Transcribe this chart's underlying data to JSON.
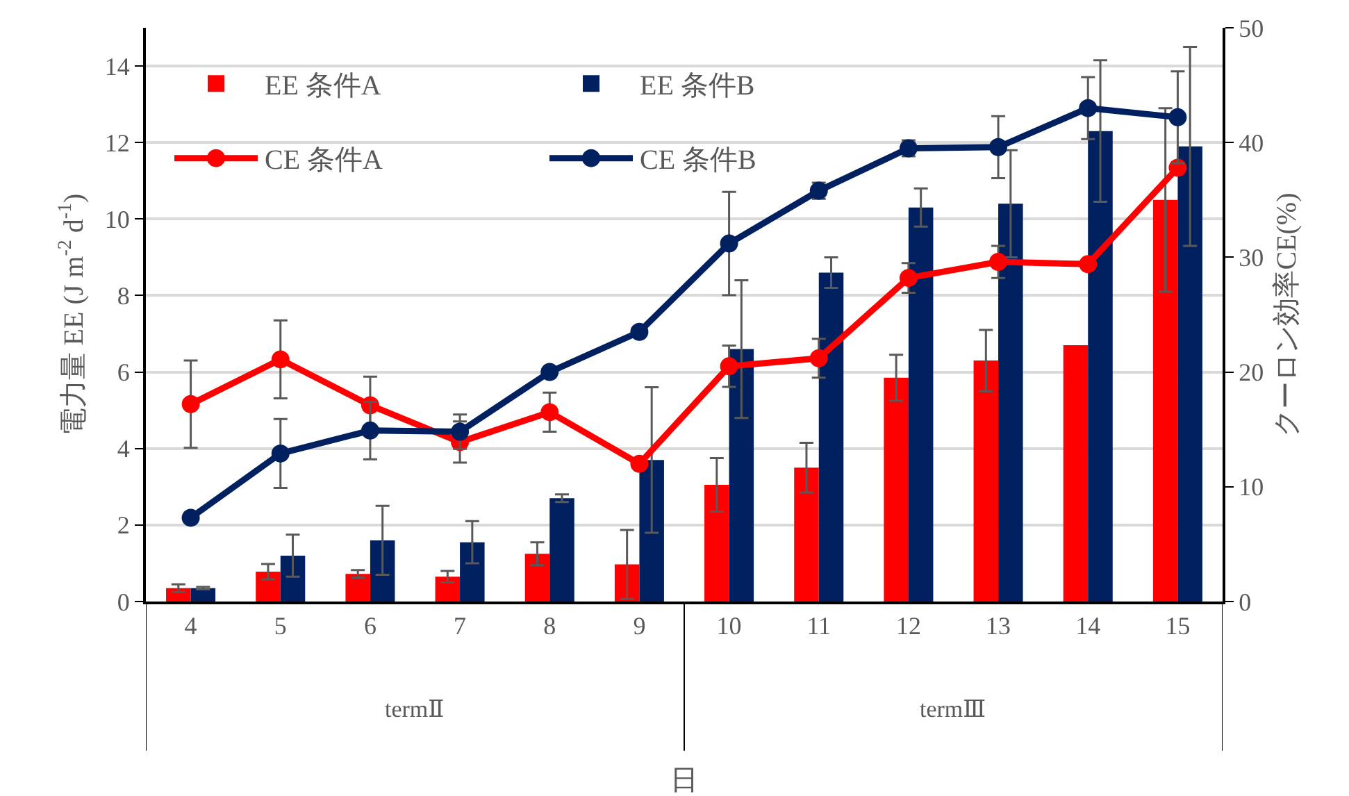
{
  "chart_data": {
    "type": "bar",
    "categories": [
      "4",
      "5",
      "6",
      "7",
      "8",
      "9",
      "10",
      "11",
      "12",
      "13",
      "14",
      "15"
    ],
    "xlabel": "日",
    "ylabel": "電力量 EE (J m$^{-2}$ d$^{-1}$)",
    "y2label": "クーロン効率CE(%)",
    "ylim": [
      0,
      15
    ],
    "yticks": [
      0,
      2,
      4,
      6,
      8,
      10,
      12,
      14
    ],
    "y2lim": [
      0,
      50
    ],
    "y2ticks": [
      0,
      10,
      20,
      30,
      40,
      50
    ],
    "grid": "y",
    "legend": "top left",
    "marker": "circle",
    "annotations": [
      "termⅡ",
      "termⅢ"
    ],
    "series": [
      {
        "name": "EE 条件A",
        "color": "#ff0000",
        "values": [
          0.35,
          0.78,
          0.72,
          0.65,
          1.25,
          0.97,
          3.05,
          3.5,
          5.85,
          6.3,
          6.7,
          10.5
        ],
        "errors": [
          0.1,
          0.2,
          0.1,
          0.15,
          0.3,
          0.9,
          0.7,
          0.65,
          0.6,
          0.8,
          null,
          2.4
        ]
      },
      {
        "name": "EE 条件B",
        "color": "#002060",
        "values": [
          0.35,
          1.2,
          1.6,
          1.55,
          2.7,
          3.7,
          6.6,
          8.6,
          10.3,
          10.4,
          12.3,
          11.9
        ],
        "errors": [
          0.03,
          0.55,
          0.9,
          0.55,
          0.1,
          1.9,
          1.8,
          0.4,
          0.5,
          1.4,
          1.85,
          2.6
        ]
      },
      {
        "name": "CE 条件A",
        "type": "line",
        "axis": "y2",
        "color": "#ff0000",
        "values": [
          17.2,
          21.1,
          17.1,
          13.9,
          16.5,
          12.0,
          20.5,
          21.2,
          28.2,
          29.6,
          29.4,
          37.8
        ],
        "errors": [
          3.8,
          3.4,
          2.5,
          1.8,
          1.7,
          null,
          1.8,
          1.7,
          1.3,
          1.4,
          null,
          null
        ]
      },
      {
        "name": "CE 条件B",
        "type": "line",
        "axis": "y2",
        "color": "#002060",
        "values": [
          7.3,
          12.9,
          14.9,
          14.8,
          20.0,
          23.5,
          31.2,
          35.8,
          39.5,
          39.6,
          43.0,
          42.2
        ],
        "errors": [
          null,
          3.0,
          2.5,
          1.5,
          null,
          null,
          4.5,
          0.7,
          0.7,
          2.7,
          2.7,
          4.0
        ]
      }
    ]
  }
}
